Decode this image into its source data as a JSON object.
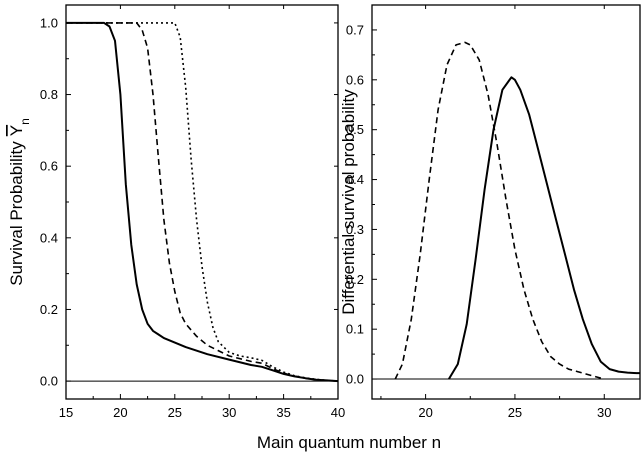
{
  "xlabel_shared": "Main quantum number n",
  "chart_data": [
    {
      "type": "line",
      "title": "",
      "xlabel": "",
      "ylabel": "Survival Probability",
      "ylabel_symbol": "Υ",
      "ylabel_subscript": "n",
      "xlim": [
        15,
        40
      ],
      "ylim": [
        -0.05,
        1.05
      ],
      "xticks": [
        15,
        20,
        25,
        30,
        35,
        40
      ],
      "yticks": [
        0.0,
        0.2,
        0.4,
        0.6,
        0.8,
        1.0
      ],
      "xtick_labels": [
        "15",
        "20",
        "25",
        "30",
        "35",
        "40"
      ],
      "ytick_labels": [
        "0.0",
        "0.2",
        "0.4",
        "0.6",
        "0.8",
        "1.0"
      ],
      "grid": false,
      "baseline": 0,
      "series": [
        {
          "style": "solid",
          "x": [
            15,
            18.5,
            19,
            19.5,
            20,
            20.5,
            21,
            21.5,
            22,
            22.5,
            23,
            23.5,
            24,
            26,
            28,
            30,
            32,
            33,
            34,
            35,
            36,
            37,
            38,
            39,
            40
          ],
          "y": [
            1.0,
            1.0,
            0.99,
            0.95,
            0.8,
            0.55,
            0.38,
            0.27,
            0.2,
            0.16,
            0.14,
            0.13,
            0.12,
            0.095,
            0.075,
            0.06,
            0.045,
            0.04,
            0.03,
            0.02,
            0.013,
            0.008,
            0.004,
            0.002,
            0.0
          ]
        },
        {
          "style": "dashed",
          "x": [
            15,
            21.5,
            22,
            22.5,
            23,
            23.5,
            24,
            24.5,
            25,
            25.5,
            26,
            27,
            28,
            30,
            32,
            33,
            34,
            35,
            36,
            37,
            38,
            39,
            40
          ],
          "y": [
            1.0,
            1.0,
            0.98,
            0.93,
            0.8,
            0.62,
            0.45,
            0.33,
            0.25,
            0.19,
            0.16,
            0.125,
            0.1,
            0.07,
            0.055,
            0.05,
            0.035,
            0.022,
            0.014,
            0.008,
            0.004,
            0.002,
            0.0
          ]
        },
        {
          "style": "dotted",
          "x": [
            15,
            25,
            25.5,
            26,
            26.5,
            27,
            27.5,
            28,
            28.5,
            29,
            30,
            31,
            32,
            33,
            34,
            35,
            36,
            37,
            38,
            39,
            40
          ],
          "y": [
            1.0,
            1.0,
            0.96,
            0.82,
            0.62,
            0.45,
            0.32,
            0.22,
            0.15,
            0.11,
            0.08,
            0.07,
            0.065,
            0.058,
            0.04,
            0.025,
            0.015,
            0.009,
            0.005,
            0.002,
            0.0
          ]
        }
      ]
    },
    {
      "type": "line",
      "title": "",
      "xlabel": "",
      "ylabel": "Differential survival probability",
      "xlim": [
        17,
        32
      ],
      "ylim": [
        -0.04,
        0.75
      ],
      "xticks": [
        20,
        25,
        30
      ],
      "yticks": [
        0.0,
        0.1,
        0.2,
        0.3,
        0.4,
        0.5,
        0.6,
        0.7
      ],
      "xtick_labels": [
        "20",
        "25",
        "30"
      ],
      "ytick_labels": [
        "0.0",
        "0.1",
        "0.2",
        "0.3",
        "0.4",
        "0.5",
        "0.6",
        "0.7"
      ],
      "grid": false,
      "baseline": 0,
      "series": [
        {
          "style": "dashed",
          "x": [
            18.3,
            18.7,
            19.2,
            19.7,
            20.2,
            20.7,
            21.2,
            21.7,
            22.2,
            22.5,
            23,
            23.5,
            24,
            24.5,
            25,
            25.5,
            26,
            26.5,
            27,
            27.5,
            28,
            28.5,
            29,
            29.5,
            30
          ],
          "y": [
            0.0,
            0.03,
            0.12,
            0.25,
            0.4,
            0.54,
            0.63,
            0.67,
            0.675,
            0.67,
            0.64,
            0.57,
            0.47,
            0.36,
            0.26,
            0.18,
            0.12,
            0.075,
            0.045,
            0.03,
            0.02,
            0.015,
            0.01,
            0.005,
            0.0
          ]
        },
        {
          "style": "solid",
          "x": [
            21.3,
            21.8,
            22.3,
            22.8,
            23.3,
            23.8,
            24.3,
            24.8,
            25,
            25.3,
            25.8,
            26.3,
            26.8,
            27.3,
            27.8,
            28.3,
            28.8,
            29.3,
            29.8,
            30.3,
            30.8,
            31.3,
            31.8,
            32
          ],
          "y": [
            0.0,
            0.03,
            0.11,
            0.24,
            0.38,
            0.5,
            0.58,
            0.605,
            0.6,
            0.58,
            0.53,
            0.46,
            0.39,
            0.32,
            0.25,
            0.18,
            0.12,
            0.07,
            0.035,
            0.02,
            0.015,
            0.013,
            0.012,
            0.012
          ]
        }
      ]
    }
  ]
}
